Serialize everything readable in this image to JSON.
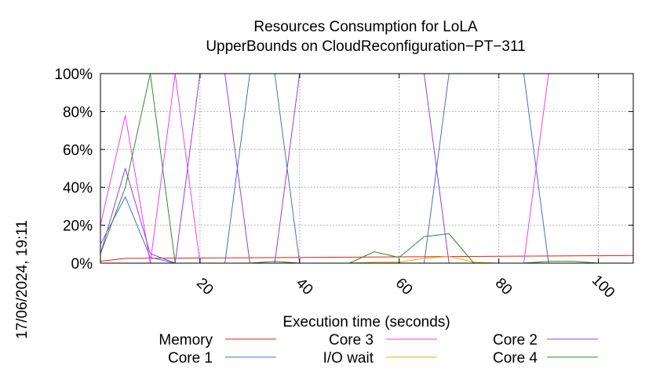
{
  "chart_data": {
    "type": "line",
    "title": "Resources Consumption for LoLA",
    "subtitle": "UpperBounds on CloudReconfiguration−PT−311",
    "xlabel": "Execution time (seconds)",
    "ylabel": "",
    "timestamp": "17/06/2024, 19:11",
    "xlim": [
      0,
      107
    ],
    "ylim": [
      0,
      100
    ],
    "xticks": [
      20,
      40,
      60,
      80,
      100
    ],
    "xtick_labels": [
      "20",
      "40",
      "60",
      "80",
      "100"
    ],
    "yticks": [
      0,
      20,
      40,
      60,
      80,
      100
    ],
    "ytick_labels": [
      "0%",
      "20%",
      "40%",
      "60%",
      "80%",
      "100%"
    ],
    "grid": true,
    "legend_position": "bottom",
    "series": [
      {
        "name": "Memory",
        "color": "#e8200e",
        "x": [
          0,
          5,
          10,
          20,
          40,
          60,
          80,
          107
        ],
        "y": [
          1,
          2.5,
          2.6,
          2.7,
          3,
          3.3,
          3.6,
          4
        ]
      },
      {
        "name": "Core 1",
        "color": "#4a6fc8",
        "x": [
          0,
          5,
          10,
          15,
          20,
          25,
          30,
          35,
          40,
          45,
          50,
          55,
          60,
          65,
          70,
          75,
          80,
          85,
          90,
          95,
          100,
          105
        ],
        "y": [
          10,
          35,
          3,
          0,
          0,
          0,
          100,
          100,
          0,
          0,
          0,
          0,
          0,
          0,
          100,
          100,
          100,
          100,
          0,
          0,
          0,
          0
        ]
      },
      {
        "name": "Core 3",
        "color": "#f040f0",
        "x": [
          0,
          5,
          10,
          15,
          20,
          25,
          30,
          35,
          40,
          45,
          50,
          55,
          60,
          65,
          70,
          75,
          80,
          85,
          90,
          95,
          100,
          105
        ],
        "y": [
          20,
          78,
          0,
          100,
          0,
          0,
          0,
          0,
          0,
          0,
          0,
          0,
          0,
          0,
          0,
          0,
          0,
          0,
          100,
          100,
          100,
          100
        ]
      },
      {
        "name": "I/O wait",
        "color": "#f2a900",
        "x": [
          0,
          5,
          10,
          20,
          40,
          50,
          55,
          60,
          65,
          70,
          75,
          80,
          107
        ],
        "y": [
          0,
          0,
          0,
          0,
          0,
          0,
          0.5,
          0.5,
          2.5,
          3.5,
          0.5,
          0,
          0
        ]
      },
      {
        "name": "Core 2",
        "color": "#9040e0",
        "x": [
          0,
          5,
          10,
          15,
          20,
          25,
          30,
          35,
          40,
          45,
          50,
          55,
          60,
          65,
          70,
          75,
          80,
          85,
          90,
          95,
          100,
          105
        ],
        "y": [
          5,
          50,
          5,
          0,
          100,
          100,
          0,
          0,
          100,
          100,
          100,
          100,
          100,
          100,
          0,
          0,
          0,
          0,
          0,
          0,
          0,
          0
        ]
      },
      {
        "name": "Core 4",
        "color": "#2e8b2e",
        "x": [
          0,
          5,
          10,
          15,
          20,
          25,
          30,
          35,
          40,
          45,
          50,
          55,
          60,
          65,
          70,
          75,
          80,
          85,
          90,
          95,
          100,
          105
        ],
        "y": [
          5,
          40,
          100,
          0,
          0,
          0,
          0,
          1,
          0,
          0,
          0,
          6,
          3,
          14,
          15.5,
          0,
          0,
          0,
          1,
          1,
          0,
          0
        ]
      }
    ]
  }
}
